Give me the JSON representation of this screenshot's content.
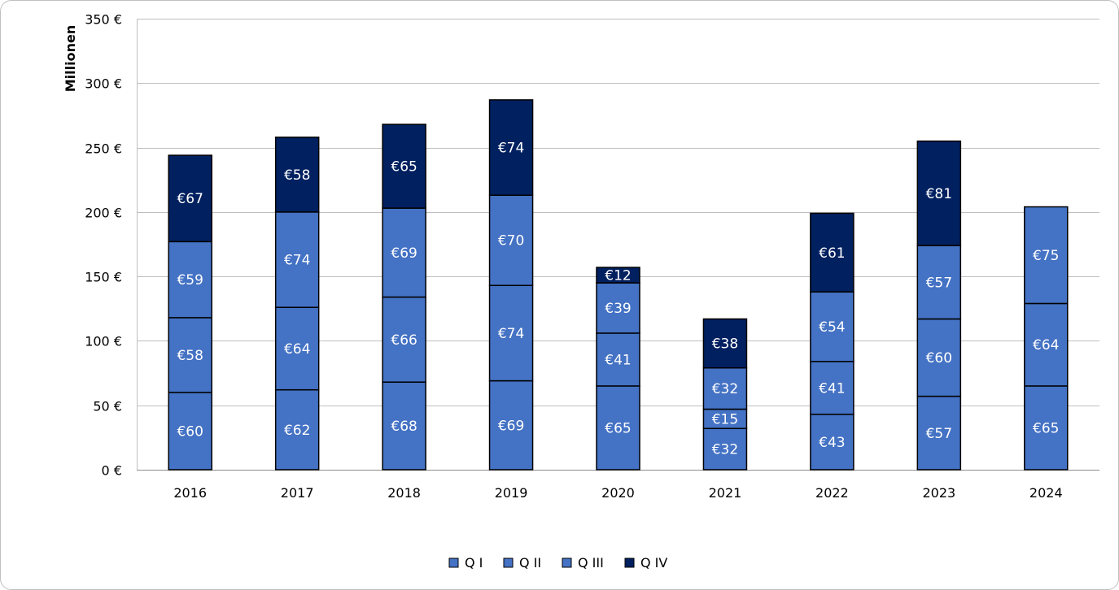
{
  "chart_data": {
    "type": "bar",
    "stacked": true,
    "categories": [
      "2016",
      "2017",
      "2018",
      "2019",
      "2020",
      "2021",
      "2022",
      "2023",
      "2024"
    ],
    "series": [
      {
        "name": "Q I",
        "color": "#4472c4",
        "values": [
          60,
          62,
          68,
          69,
          65,
          32,
          43,
          57,
          65
        ],
        "labels": [
          "€60",
          "€62",
          "€68",
          "€69",
          "€65",
          "€32",
          "€43",
          "€57",
          "€65"
        ]
      },
      {
        "name": "Q II",
        "color": "#4472c4",
        "values": [
          58,
          64,
          66,
          74,
          41,
          15,
          41,
          60,
          64
        ],
        "labels": [
          "€58",
          "€64",
          "€66",
          "€74",
          "€41",
          "€15",
          "€41",
          "€60",
          "€64"
        ]
      },
      {
        "name": "Q III",
        "color": "#4472c4",
        "values": [
          59,
          74,
          69,
          70,
          39,
          32,
          54,
          57,
          75
        ],
        "labels": [
          "€59",
          "€74",
          "€69",
          "€70",
          "€39",
          "€32",
          "€54",
          "€57",
          "€75"
        ]
      },
      {
        "name": "Q IV",
        "color": "#002060",
        "values": [
          67,
          58,
          65,
          74,
          12,
          38,
          61,
          81,
          null
        ],
        "labels": [
          "€67",
          "€58",
          "€65",
          "€74",
          "€12",
          "€38",
          "€61",
          "€81",
          ""
        ]
      }
    ],
    "ylabel": "Millionen",
    "xlabel": "",
    "title": "",
    "ylim": [
      0,
      350
    ],
    "yticks": [
      0,
      50,
      100,
      150,
      200,
      250,
      300,
      350
    ],
    "ytick_labels": [
      "0 €",
      "50 €",
      "100 €",
      "150 €",
      "200 €",
      "250 €",
      "300 €",
      "350 €"
    ],
    "grid": true,
    "legend": "bottom"
  }
}
